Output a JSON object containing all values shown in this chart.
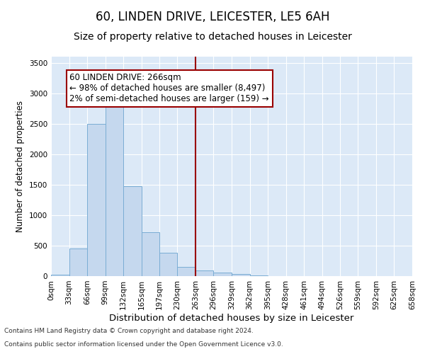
{
  "title": "60, LINDEN DRIVE, LEICESTER, LE5 6AH",
  "subtitle": "Size of property relative to detached houses in Leicester",
  "xlabel": "Distribution of detached houses by size in Leicester",
  "ylabel": "Number of detached properties",
  "footnote1": "Contains HM Land Registry data © Crown copyright and database right 2024.",
  "footnote2": "Contains public sector information licensed under the Open Government Licence v3.0.",
  "bar_edges": [
    0,
    33,
    66,
    99,
    132,
    165,
    197,
    230,
    263,
    296,
    329,
    362,
    395,
    428,
    461,
    494,
    526,
    559,
    592,
    625,
    658
  ],
  "bar_heights": [
    20,
    450,
    2500,
    2850,
    1480,
    720,
    380,
    155,
    90,
    60,
    30,
    10,
    5,
    0,
    0,
    0,
    0,
    0,
    0,
    0
  ],
  "bar_color": "#c5d8ee",
  "bar_edge_color": "#7aadd4",
  "property_line_x": 263,
  "property_line_color": "#990000",
  "annotation_text": "60 LINDEN DRIVE: 266sqm\n← 98% of detached houses are smaller (8,497)\n2% of semi-detached houses are larger (159) →",
  "annotation_box_color": "#990000",
  "annotation_bg": "#ffffff",
  "ylim": [
    0,
    3600
  ],
  "yticks": [
    0,
    500,
    1000,
    1500,
    2000,
    2500,
    3000,
    3500
  ],
  "background_color": "#dce9f7",
  "grid_color": "#ffffff",
  "title_fontsize": 12,
  "subtitle_fontsize": 10,
  "xlabel_fontsize": 9.5,
  "ylabel_fontsize": 8.5,
  "tick_fontsize": 7.5,
  "annot_fontsize": 8.5
}
